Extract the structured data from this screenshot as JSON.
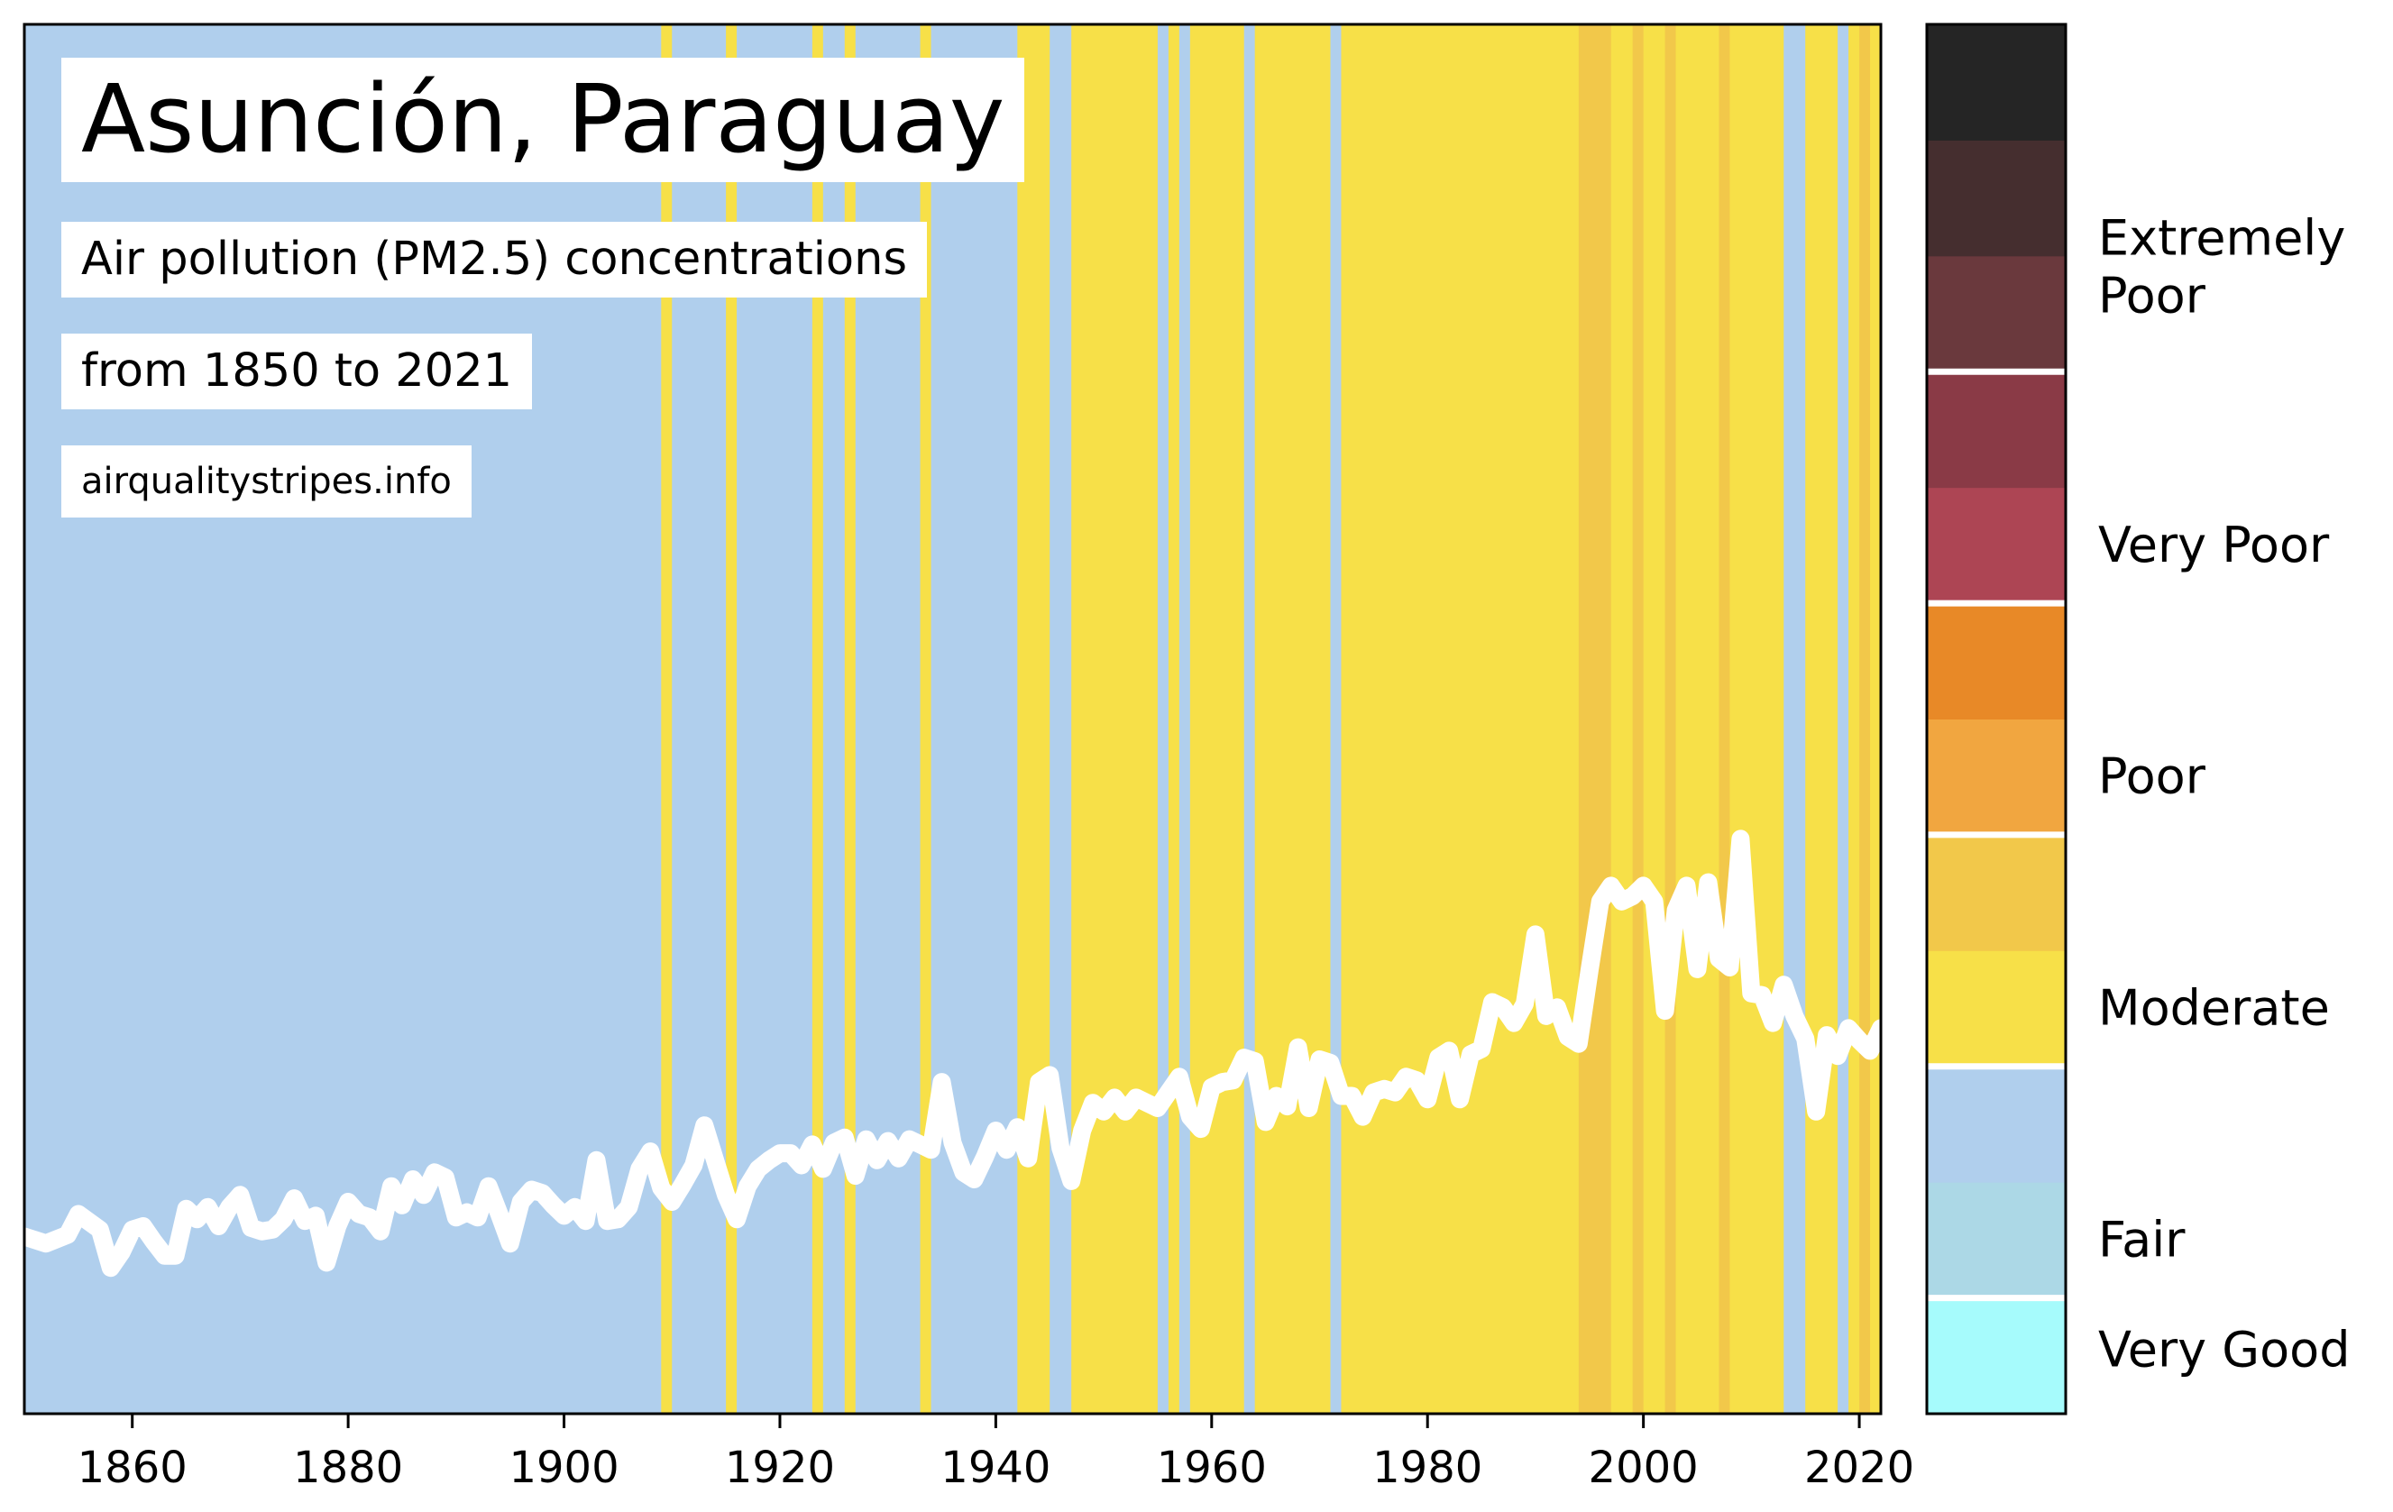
{
  "title": "Asunción, Paraguay",
  "subtitle_line1": "Air pollution (PM2.5) concentrations",
  "subtitle_line2": "from 1850 to 2021",
  "website": "airqualitystripes.info",
  "chart_data": {
    "type": "heatmap",
    "description_of_encoding": "Each vertical stripe is one year, colored by its PM2.5 air quality category; white line shows annual PM2.5 concentration.",
    "x_range": [
      1850,
      2022
    ],
    "x_ticks": [
      "1860",
      "1880",
      "1900",
      "1920",
      "1940",
      "1960",
      "1980",
      "2000",
      "2020"
    ],
    "y_axis_visible": false,
    "colors": {
      "fair": "#b0cfed",
      "moderate": "#f7e048",
      "moderate_high": "#f2c84a",
      "line": "#ffffff"
    },
    "stripes": [
      {
        "from": 1850,
        "to": 1909,
        "category": "fair"
      },
      {
        "from": 1909,
        "to": 1910,
        "category": "moderate"
      },
      {
        "from": 1910,
        "to": 1915,
        "category": "fair"
      },
      {
        "from": 1915,
        "to": 1916,
        "category": "moderate"
      },
      {
        "from": 1916,
        "to": 1923,
        "category": "fair"
      },
      {
        "from": 1923,
        "to": 1924,
        "category": "moderate"
      },
      {
        "from": 1924,
        "to": 1926,
        "category": "fair"
      },
      {
        "from": 1926,
        "to": 1927,
        "category": "moderate"
      },
      {
        "from": 1927,
        "to": 1933,
        "category": "fair"
      },
      {
        "from": 1933,
        "to": 1934,
        "category": "moderate"
      },
      {
        "from": 1934,
        "to": 1942,
        "category": "fair"
      },
      {
        "from": 1942,
        "to": 1945,
        "category": "moderate"
      },
      {
        "from": 1945,
        "to": 1947,
        "category": "fair"
      },
      {
        "from": 1947,
        "to": 1955,
        "category": "moderate"
      },
      {
        "from": 1955,
        "to": 1956,
        "category": "fair"
      },
      {
        "from": 1956,
        "to": 1957,
        "category": "moderate"
      },
      {
        "from": 1957,
        "to": 1958,
        "category": "fair"
      },
      {
        "from": 1958,
        "to": 1963,
        "category": "moderate"
      },
      {
        "from": 1963,
        "to": 1964,
        "category": "fair"
      },
      {
        "from": 1964,
        "to": 1971,
        "category": "moderate"
      },
      {
        "from": 1971,
        "to": 1972,
        "category": "fair"
      },
      {
        "from": 1972,
        "to": 1994,
        "category": "moderate"
      },
      {
        "from": 1994,
        "to": 1997,
        "category": "moderate_high"
      },
      {
        "from": 1997,
        "to": 1999,
        "category": "moderate"
      },
      {
        "from": 1999,
        "to": 2000,
        "category": "moderate_high"
      },
      {
        "from": 2000,
        "to": 2002,
        "category": "moderate"
      },
      {
        "from": 2002,
        "to": 2003,
        "category": "moderate_high"
      },
      {
        "from": 2003,
        "to": 2007,
        "category": "moderate"
      },
      {
        "from": 2007,
        "to": 2008,
        "category": "moderate_high"
      },
      {
        "from": 2008,
        "to": 2013,
        "category": "moderate"
      },
      {
        "from": 2013,
        "to": 2015,
        "category": "fair"
      },
      {
        "from": 2015,
        "to": 2018,
        "category": "moderate"
      },
      {
        "from": 2018,
        "to": 2019,
        "category": "fair"
      },
      {
        "from": 2019,
        "to": 2020,
        "category": "moderate"
      },
      {
        "from": 2020,
        "to": 2021,
        "category": "moderate_high"
      },
      {
        "from": 2021,
        "to": 2022,
        "category": "moderate"
      }
    ],
    "line_series": {
      "name": "PM2.5 concentration",
      "y_range": [
        0,
        80
      ],
      "x": [
        1850,
        1852,
        1854,
        1855,
        1857,
        1858,
        1859,
        1860,
        1861,
        1862,
        1863,
        1864,
        1865,
        1866,
        1867,
        1868,
        1869,
        1870,
        1871,
        1872,
        1873,
        1874,
        1875,
        1876,
        1877,
        1878,
        1879,
        1880,
        1881,
        1882,
        1883,
        1884,
        1885,
        1886,
        1887,
        1888,
        1889,
        1890,
        1891,
        1892,
        1893,
        1894,
        1895,
        1896,
        1897,
        1898,
        1899,
        1900,
        1901,
        1902,
        1903,
        1904,
        1905,
        1906,
        1907,
        1908,
        1909,
        1910,
        1911,
        1912,
        1913,
        1914,
        1915,
        1916,
        1917,
        1918,
        1919,
        1920,
        1921,
        1922,
        1923,
        1924,
        1925,
        1926,
        1927,
        1928,
        1929,
        1930,
        1931,
        1932,
        1933,
        1934,
        1935,
        1936,
        1937,
        1938,
        1939,
        1940,
        1941,
        1942,
        1943,
        1944,
        1945,
        1946,
        1947,
        1948,
        1949,
        1950,
        1951,
        1952,
        1953,
        1954,
        1955,
        1956,
        1957,
        1958,
        1959,
        1960,
        1961,
        1962,
        1963,
        1964,
        1965,
        1966,
        1967,
        1968,
        1969,
        1970,
        1971,
        1972,
        1973,
        1974,
        1975,
        1976,
        1977,
        1978,
        1979,
        1980,
        1981,
        1982,
        1983,
        1984,
        1985,
        1986,
        1987,
        1988,
        1989,
        1990,
        1991,
        1992,
        1993,
        1994,
        1995,
        1996,
        1997,
        1998,
        1999,
        2000,
        2001,
        2002,
        2003,
        2004,
        2005,
        2006,
        2007,
        2008,
        2009,
        2010,
        2011,
        2012,
        2013,
        2014,
        2015,
        2016,
        2017,
        2018,
        2019,
        2020,
        2021,
        2022
      ],
      "y": [
        10.2,
        9.8,
        10.3,
        11.5,
        10.6,
        8.4,
        9.3,
        10.6,
        10.8,
        9.9,
        9.1,
        9.1,
        11.8,
        11.2,
        11.9,
        10.8,
        11.9,
        12.6,
        10.7,
        10.5,
        10.6,
        11.2,
        12.4,
        11.1,
        11.4,
        8.7,
        10.8,
        12.2,
        11.5,
        11.3,
        10.5,
        13.1,
        12.0,
        13.5,
        12.6,
        13.9,
        13.6,
        11.3,
        11.6,
        11.3,
        13.1,
        11.5,
        9.8,
        12.2,
        12.9,
        12.7,
        12.0,
        11.4,
        11.9,
        11.1,
        14.6,
        11.1,
        11.2,
        11.9,
        14.1,
        15.1,
        13.0,
        12.2,
        13.2,
        14.3,
        16.6,
        14.6,
        12.6,
        11.2,
        13.1,
        14.1,
        14.6,
        15.0,
        15.0,
        14.3,
        15.5,
        14.1,
        15.6,
        15.9,
        13.7,
        15.8,
        14.6,
        15.7,
        14.7,
        15.8,
        15.5,
        15.2,
        19.1,
        15.6,
        13.9,
        13.5,
        14.8,
        16.3,
        15.2,
        16.5,
        14.7,
        19.1,
        19.5,
        15.3,
        13.4,
        16.3,
        17.9,
        17.4,
        18.2,
        17.4,
        18.2,
        17.9,
        17.6,
        18.5,
        19.4,
        17.1,
        16.4,
        18.8,
        19.1,
        19.2,
        20.5,
        20.3,
        16.8,
        18.3,
        17.7,
        21.1,
        17.6,
        20.4,
        20.2,
        18.3,
        18.3,
        17.1,
        18.5,
        18.7,
        18.5,
        19.4,
        19.2,
        18.1,
        20.5,
        20.9,
        18.1,
        20.7,
        21.0,
        23.7,
        23.4,
        22.5,
        23.6,
        27.6,
        22.9,
        23.4,
        21.7,
        21.3,
        25.5,
        29.5,
        30.4,
        29.5,
        29.8,
        30.4,
        29.5,
        23.2,
        29.0,
        30.4,
        25.6,
        30.6,
        26.2,
        25.7,
        33.1,
        24.2,
        24.1,
        22.5,
        24.7,
        22.9,
        21.6,
        17.4,
        21.8,
        20.6,
        22.2,
        21.5,
        20.9,
        22.2,
        30.8,
        20.6,
        19.6
      ]
    },
    "legend": {
      "title": "",
      "categories": [
        "Very Good",
        "Fair",
        "Moderate",
        "Poor",
        "Very Poor",
        "Extremely Poor"
      ],
      "swatches_bottom_to_top": [
        "#a6fbfc",
        "#acd8e6",
        "#b0cfed",
        "#f7e048",
        "#f2c84a",
        "#f1a640",
        "#e88927",
        "#ad4554",
        "#8a3a46",
        "#6a393d",
        "#452e2f",
        "#252525"
      ]
    }
  }
}
